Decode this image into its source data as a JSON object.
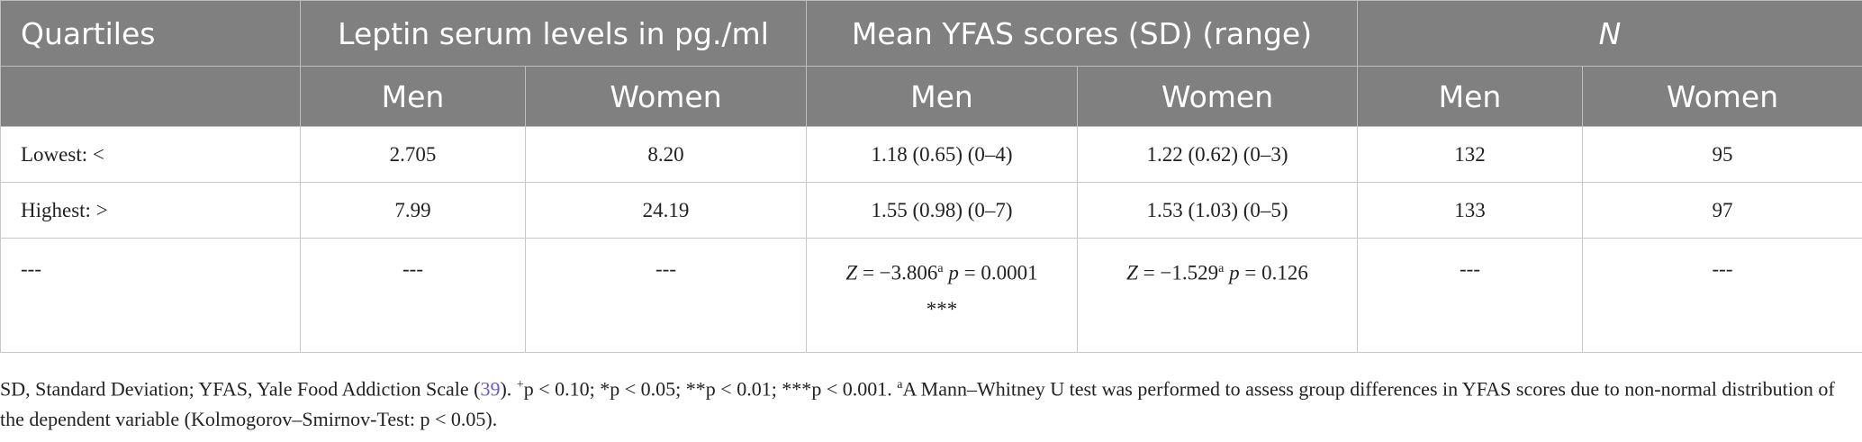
{
  "header": {
    "quartiles": "Quartiles",
    "leptin": "Leptin serum levels in pg./ml",
    "yfas": "Mean YFAS scores (SD) (range)",
    "n": "N",
    "men": "Men",
    "women": "Women"
  },
  "rows": [
    {
      "label": "Lowest: <",
      "leptin_men": "2.705",
      "leptin_women": "8.20",
      "yfas_men": "1.18 (0.65) (0–4)",
      "yfas_women": "1.22 (0.62) (0–3)",
      "n_men": "132",
      "n_women": "95"
    },
    {
      "label": "Highest: >",
      "leptin_men": "7.99",
      "leptin_women": "24.19",
      "yfas_men": "1.55 (0.98) (0–7)",
      "yfas_women": "1.53 (1.03) (0–5)",
      "n_men": "133",
      "n_women": "97"
    }
  ],
  "stats_row": {
    "label": "---",
    "leptin_men": "---",
    "leptin_women": "---",
    "men_z_prefix": "Z",
    "men_z_value": " = −3.806",
    "men_sup": "a",
    "men_p_prefix": "p",
    "men_p_value": " = 0.0001",
    "men_stars": "***",
    "women_z_prefix": "Z",
    "women_z_value": " = −1.529",
    "women_sup": "a",
    "women_p_prefix": "p",
    "women_p_value": " = 0.126",
    "n_men": "---",
    "n_women": "---"
  },
  "footnote": {
    "part1": "SD, Standard Deviation; YFAS, Yale Food Addiction Scale (",
    "ref": "39",
    "part2": "). ",
    "plus_sup": "+",
    "p_lt_010": "p < 0.10; *",
    "p_lt_005": "p < 0.05; **",
    "p_lt_001": "p < 0.01; ***",
    "p_lt_0001": "p < 0.001. ",
    "a_sup": "a",
    "note": "A Mann–Whitney U test was performed to assess group differences in YFAS scores due to non-normal distribution of the dependent variable (Kolmogorov–Smirnov-Test: ",
    "p_final": "p < 0.05).",
    "p": "p"
  }
}
